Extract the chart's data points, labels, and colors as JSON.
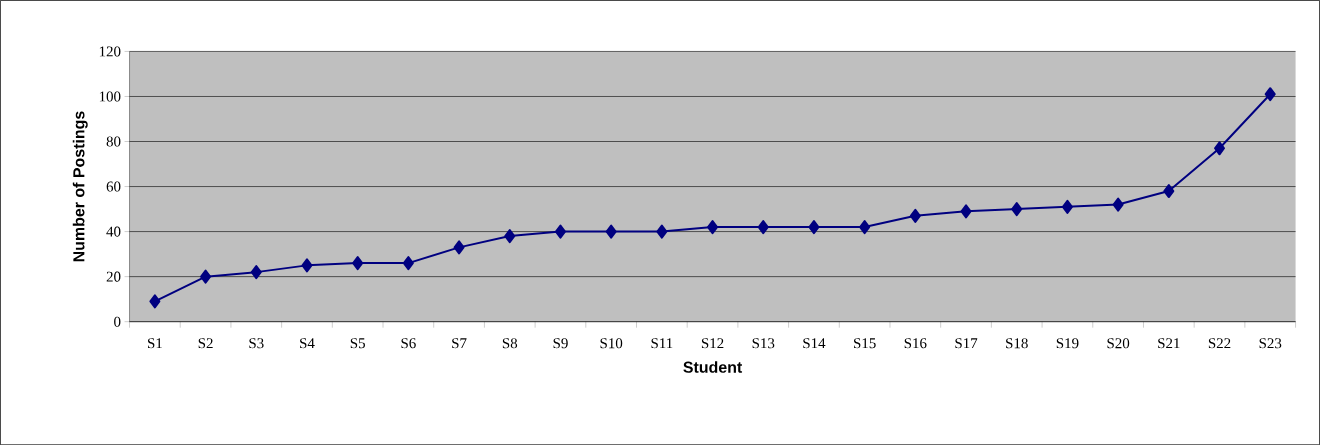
{
  "chart_data": {
    "type": "line",
    "xlabel": "Student",
    "ylabel": "Number of Postings",
    "categories": [
      "S1",
      "S2",
      "S3",
      "S4",
      "S5",
      "S6",
      "S7",
      "S8",
      "S9",
      "S10",
      "S11",
      "S12",
      "S13",
      "S14",
      "S15",
      "S16",
      "S17",
      "S18",
      "S19",
      "S20",
      "S21",
      "S22",
      "S23"
    ],
    "series": [
      {
        "color": "#000080",
        "values": [
          9,
          20,
          22,
          25,
          26,
          26,
          33,
          38,
          40,
          40,
          40,
          42,
          42,
          42,
          42,
          47,
          49,
          50,
          51,
          52,
          58,
          77,
          101
        ]
      }
    ],
    "ylim": [
      0,
      120
    ],
    "yticks": [
      0,
      20,
      40,
      60,
      80,
      100,
      120
    ],
    "grid": "y",
    "marker": "diamond",
    "line_style": "solid"
  }
}
